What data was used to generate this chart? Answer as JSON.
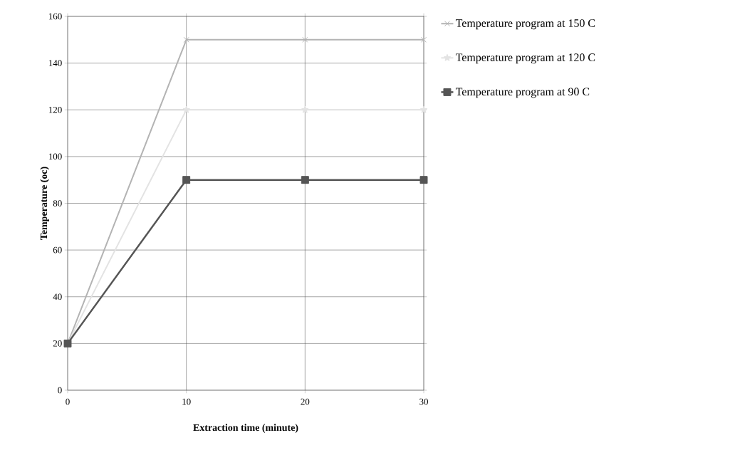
{
  "chart_data": {
    "type": "line",
    "xlabel": "Extraction time (minute)",
    "ylabel": "Temperature   (oc)",
    "x": [
      0,
      10,
      20,
      30
    ],
    "series": [
      {
        "name": "Temperature program at 150   C",
        "color": "#b3b3b3",
        "marker": "cross",
        "values": [
          20,
          150,
          150,
          150
        ]
      },
      {
        "name": "Temperature program at 120   C",
        "color": "#e3e3e3",
        "marker": "star",
        "values": [
          20,
          120,
          120,
          120
        ]
      },
      {
        "name": "Temperature program at 90   C",
        "color": "#555555",
        "marker": "square",
        "values": [
          20,
          90,
          90,
          90
        ]
      }
    ],
    "xlim": [
      0,
      30
    ],
    "xticks": [
      0,
      10,
      20,
      30
    ],
    "ylim": [
      0,
      160
    ],
    "yticks": [
      0,
      20,
      40,
      60,
      80,
      100,
      120,
      140,
      160
    ],
    "grid": true,
    "legend": "right",
    "line_style": "solid"
  }
}
